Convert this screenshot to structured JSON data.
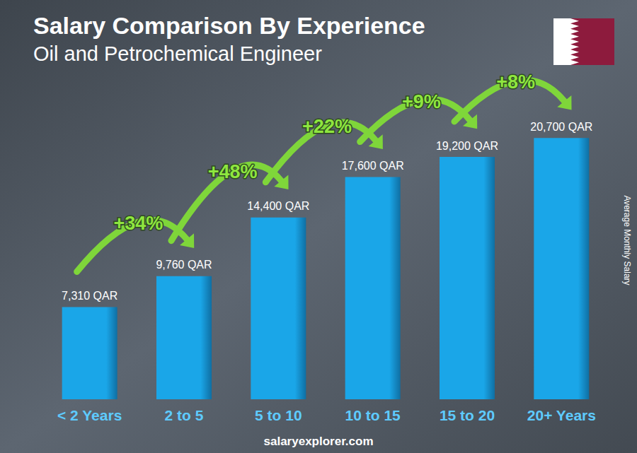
{
  "chart_data": {
    "type": "bar",
    "title": "Salary Comparison By Experience",
    "subtitle": "Oil and Petrochemical Engineer",
    "y_label": "Average Monthly Salary",
    "source": "salaryexplorer.com",
    "categories": [
      "< 2 Years",
      "2 to 5",
      "5 to 10",
      "10 to 15",
      "15 to 20",
      "20+ Years"
    ],
    "values": [
      7310,
      9760,
      14400,
      17600,
      19200,
      20700
    ],
    "value_labels": [
      "7,310 QAR",
      "9,760 QAR",
      "14,400 QAR",
      "17,600 QAR",
      "19,200 QAR",
      "20,700 QAR"
    ],
    "changes": [
      34,
      48,
      22,
      9,
      8
    ],
    "change_labels": [
      "+34%",
      "+48%",
      "+22%",
      "+9%",
      "+8%"
    ],
    "color": "#1aa6e8",
    "ylim": [
      0,
      22000
    ],
    "data_labels": true,
    "tick_labels": "x",
    "grid": false
  }
}
